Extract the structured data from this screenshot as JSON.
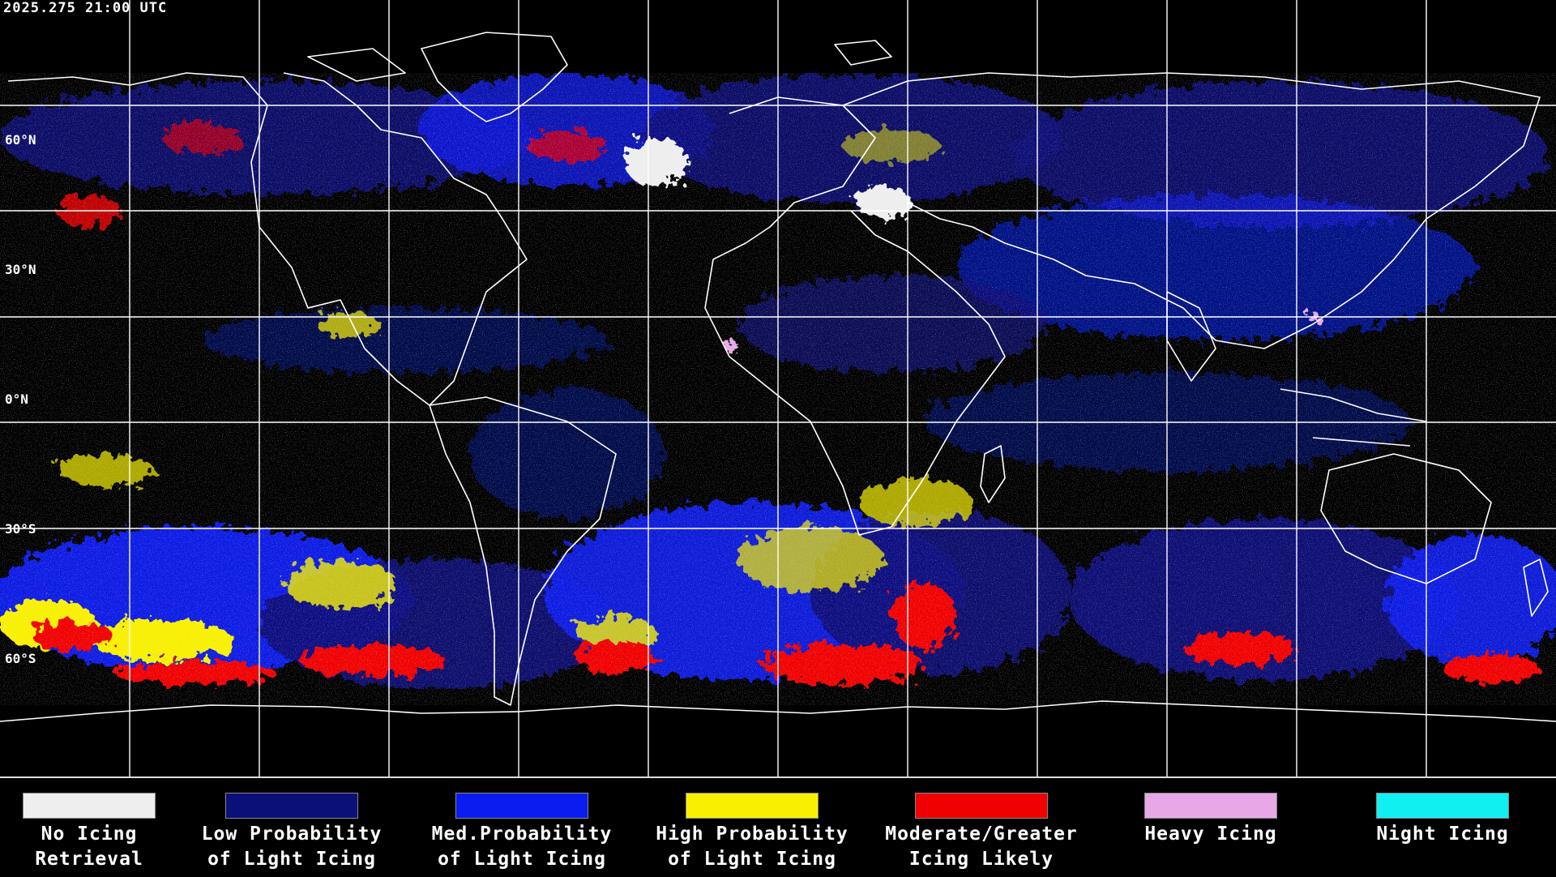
{
  "header": {
    "timestamp": "2025.275 21:00 UTC"
  },
  "map": {
    "latitude_labels": [
      "60°N",
      "30°N",
      "0°N",
      "30°S",
      "60°S"
    ],
    "background_color": "#000000",
    "grid_color": "#ffffff",
    "coastline_color": "#ffffff",
    "grid_spacing_deg": 30
  },
  "legend": {
    "items": [
      {
        "id": "no-icing",
        "line1": "No Icing",
        "line2": "Retrieval",
        "color": "#eeeeee"
      },
      {
        "id": "low-prob",
        "line1": "Low Probability",
        "line2": "of Light Icing",
        "color": "#0a1078"
      },
      {
        "id": "med-prob",
        "line1": "Med.Probability",
        "line2": "of Light Icing",
        "color": "#0a1cf0"
      },
      {
        "id": "high-prob",
        "line1": "High Probability",
        "line2": "of Light Icing",
        "color": "#f8f000"
      },
      {
        "id": "moderate",
        "line1": "Moderate/Greater",
        "line2": "Icing Likely",
        "color": "#f00000"
      },
      {
        "id": "heavy",
        "line1": "Heavy Icing",
        "line2": "",
        "color": "#e8a8e8"
      },
      {
        "id": "night",
        "line1": "Night Icing",
        "line2": "",
        "color": "#10f0f0"
      }
    ]
  }
}
